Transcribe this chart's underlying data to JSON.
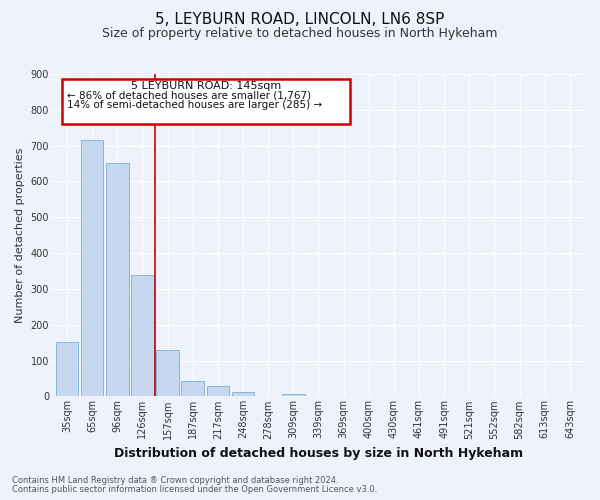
{
  "title": "5, LEYBURN ROAD, LINCOLN, LN6 8SP",
  "subtitle": "Size of property relative to detached houses in North Hykeham",
  "xlabel": "Distribution of detached houses by size in North Hykeham",
  "ylabel": "Number of detached properties",
  "categories": [
    "35sqm",
    "65sqm",
    "96sqm",
    "126sqm",
    "157sqm",
    "187sqm",
    "217sqm",
    "248sqm",
    "278sqm",
    "309sqm",
    "339sqm",
    "369sqm",
    "400sqm",
    "430sqm",
    "461sqm",
    "491sqm",
    "521sqm",
    "552sqm",
    "582sqm",
    "613sqm",
    "643sqm"
  ],
  "bar_values": [
    152,
    715,
    652,
    340,
    130,
    42,
    30,
    12,
    0,
    8,
    0,
    0,
    0,
    0,
    0,
    0,
    0,
    0,
    0,
    0,
    0
  ],
  "bar_color": "#c5d8f0",
  "bar_edge_color": "#7bafd4",
  "red_line_index": 3.5,
  "annotation_title": "5 LEYBURN ROAD: 145sqm",
  "annotation_line1": "← 86% of detached houses are smaller (1,767)",
  "annotation_line2": "14% of semi-detached houses are larger (285) →",
  "annotation_box_color": "#cc0000",
  "ylim": [
    0,
    900
  ],
  "yticks": [
    0,
    100,
    200,
    300,
    400,
    500,
    600,
    700,
    800,
    900
  ],
  "footnote1": "Contains HM Land Registry data ® Crown copyright and database right 2024.",
  "footnote2": "Contains public sector information licensed under the Open Government Licence v3.0.",
  "background_color": "#eef2fb",
  "grid_color": "#ffffff",
  "title_fontsize": 11,
  "subtitle_fontsize": 9,
  "xlabel_fontsize": 9,
  "ylabel_fontsize": 8,
  "tick_fontsize": 7,
  "annotation_fontsize_title": 8,
  "annotation_fontsize_body": 7.5,
  "footnote_fontsize": 6
}
